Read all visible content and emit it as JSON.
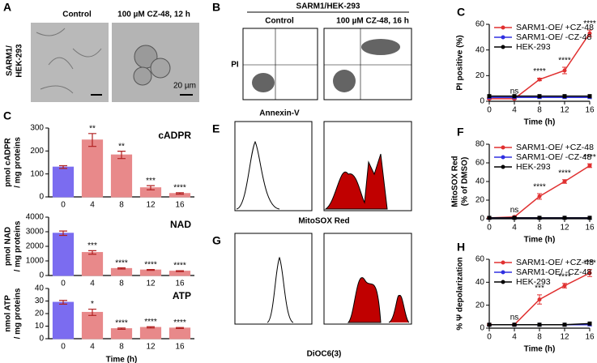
{
  "figure": {
    "panel_a": {
      "letter": "A",
      "row_label": [
        "SARM1/",
        "HEK-293"
      ],
      "columns": [
        "Control",
        "100 µM CZ-48, 12 h"
      ],
      "scale": "20 µm"
    },
    "panel_b": {
      "letter": "B",
      "title": "SARM1/HEK-293",
      "columns": [
        "Control",
        "100 µM CZ-48, 16 h"
      ],
      "y_label": "PI",
      "x_label": "Annexin-V"
    },
    "panel_e": {
      "letter": "E",
      "x_label": "MitoSOX Red"
    },
    "panel_g": {
      "letter": "G",
      "x_label": "DiOC6(3)"
    }
  },
  "chart_data": [
    {
      "type": "bar",
      "panel": "C",
      "label": "cADPR",
      "y_label": [
        "pmol cADPR",
        "/ mg proteins"
      ],
      "categories": [
        "0",
        "4",
        "8",
        "12",
        "16"
      ],
      "values": [
        130,
        248,
        183,
        40,
        15
      ],
      "errors": [
        6,
        28,
        16,
        9,
        3
      ],
      "colors": [
        "#7b6cf0",
        "#e8898a",
        "#e8898a",
        "#e8898a",
        "#e8898a"
      ],
      "sig": [
        null,
        "**",
        "**",
        "***",
        "****"
      ],
      "ylim": [
        0,
        300
      ],
      "yticks": [
        0,
        100,
        200,
        300
      ]
    },
    {
      "type": "bar",
      "label": "NAD",
      "y_label": [
        "pmol NAD",
        "/ mg proteins"
      ],
      "categories": [
        "0",
        "4",
        "8",
        "12",
        "16"
      ],
      "values": [
        2900,
        1580,
        480,
        380,
        300
      ],
      "errors": [
        150,
        120,
        40,
        30,
        30
      ],
      "colors": [
        "#7b6cf0",
        "#e8898a",
        "#e8898a",
        "#e8898a",
        "#e8898a"
      ],
      "sig": [
        null,
        "***",
        "****",
        "****",
        "****"
      ],
      "ylim": [
        0,
        4000
      ],
      "yticks": [
        0,
        1000,
        2000,
        3000,
        4000
      ]
    },
    {
      "type": "bar",
      "label": "ATP",
      "y_label": [
        "nmol ATP",
        "/ mg proteins"
      ],
      "x_label": "Time (h)",
      "categories": [
        "0",
        "4",
        "8",
        "12",
        "16"
      ],
      "values": [
        29,
        21,
        8,
        9,
        8.5
      ],
      "errors": [
        1.5,
        2.5,
        0.5,
        0.5,
        0.4
      ],
      "colors": [
        "#7b6cf0",
        "#e8898a",
        "#e8898a",
        "#e8898a",
        "#e8898a"
      ],
      "sig": [
        null,
        "*",
        "****",
        "****",
        "****"
      ],
      "ylim": [
        0,
        40
      ],
      "yticks": [
        0,
        10,
        20,
        30,
        40
      ]
    },
    {
      "type": "line",
      "panel": "C",
      "y_label": [
        "PI positive (%)"
      ],
      "x_label": "Time (h)",
      "legend": "upper left",
      "x": [
        0,
        4,
        8,
        12,
        16
      ],
      "xlim": [
        0,
        16
      ],
      "xticks": [
        0,
        4,
        8,
        12,
        16
      ],
      "ylim": [
        0,
        60
      ],
      "yticks": [
        0,
        20,
        40,
        60
      ],
      "series": [
        {
          "name": "SARM1-OE/ +CZ-48",
          "color": "#e03030",
          "values": [
            2,
            2,
            17,
            24,
            53
          ],
          "errors": [
            0.5,
            0.5,
            1,
            2.5,
            2.5
          ]
        },
        {
          "name": "SARM1-OE/ -CZ-48",
          "color": "#3030e0",
          "values": [
            3,
            3,
            3,
            3,
            3
          ]
        },
        {
          "name": "HEK-293",
          "color": "#000000",
          "values": [
            4,
            4,
            4,
            4,
            4
          ]
        }
      ],
      "sig": [
        null,
        "ns",
        "****",
        "****",
        "****"
      ]
    },
    {
      "type": "line",
      "panel": "F",
      "y_label": [
        "MitoSOX Red",
        "(% of DMSO)"
      ],
      "x_label": "Time (h)",
      "legend": "upper left",
      "x": [
        0,
        4,
        8,
        12,
        16
      ],
      "xlim": [
        0,
        16
      ],
      "xticks": [
        0,
        4,
        8,
        12,
        16
      ],
      "ylim": [
        0,
        80
      ],
      "yticks": [
        0,
        20,
        40,
        60,
        80
      ],
      "series": [
        {
          "name": "SARM1-OE/ +CZ-48",
          "color": "#e03030",
          "values": [
            1,
            2,
            24,
            40,
            57
          ],
          "errors": [
            0.5,
            0.5,
            3,
            2,
            2
          ]
        },
        {
          "name": "SARM1-OE/ -CZ-48",
          "color": "#3030e0",
          "values": [
            1,
            1,
            1,
            1,
            1
          ]
        },
        {
          "name": "HEK-293",
          "color": "#000000",
          "values": [
            1,
            1,
            1,
            1,
            1
          ]
        }
      ],
      "sig": [
        null,
        "ns",
        "****",
        "****",
        "****"
      ]
    },
    {
      "type": "line",
      "panel": "H",
      "y_label": [
        "% Ψ depolarization"
      ],
      "x_label": "Time (h)",
      "legend": "upper left",
      "x": [
        0,
        4,
        8,
        12,
        16
      ],
      "xlim": [
        0,
        16
      ],
      "xticks": [
        0,
        4,
        8,
        12,
        16
      ],
      "ylim": [
        0,
        60
      ],
      "yticks": [
        0,
        20,
        40,
        60
      ],
      "series": [
        {
          "name": "SARM1-OE/ +CZ-48",
          "color": "#e03030",
          "values": [
            3,
            3,
            25,
            37,
            48
          ],
          "errors": [
            0.5,
            0.5,
            4,
            2,
            3
          ]
        },
        {
          "name": "SARM1-OE/ -CZ-48",
          "color": "#3030e0",
          "values": [
            3,
            3,
            3,
            3,
            3
          ]
        },
        {
          "name": "HEK-293",
          "color": "#000000",
          "values": [
            3,
            3,
            3,
            3,
            4
          ]
        }
      ],
      "sig": [
        null,
        "ns",
        "***",
        "****",
        "****"
      ]
    }
  ]
}
